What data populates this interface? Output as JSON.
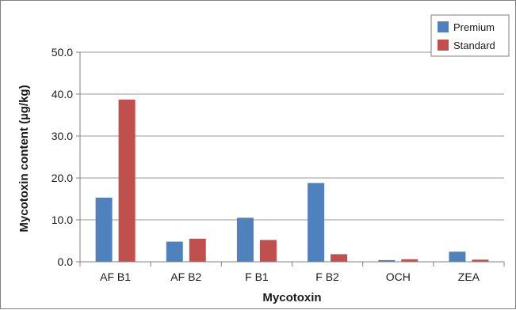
{
  "chart_data": {
    "type": "bar",
    "title": "",
    "xlabel": "Mycotoxin",
    "ylabel": "Mycotoxin content (µg/kg)",
    "categories": [
      "AF B1",
      "AF B2",
      "F B1",
      "F B2",
      "OCH",
      "ZEA"
    ],
    "series": [
      {
        "name": "Premium",
        "color": "#4f81bd",
        "values": [
          15.3,
          4.8,
          10.5,
          18.8,
          0.4,
          2.4
        ]
      },
      {
        "name": "Standard",
        "color": "#c0504d",
        "values": [
          38.7,
          5.5,
          5.2,
          1.8,
          0.6,
          0.5
        ]
      }
    ],
    "ylim": [
      0,
      50
    ],
    "yticks": [
      "0.0",
      "10.0",
      "20.0",
      "30.0",
      "40.0",
      "50.0"
    ],
    "grid": true,
    "legend_position": "top-right"
  }
}
